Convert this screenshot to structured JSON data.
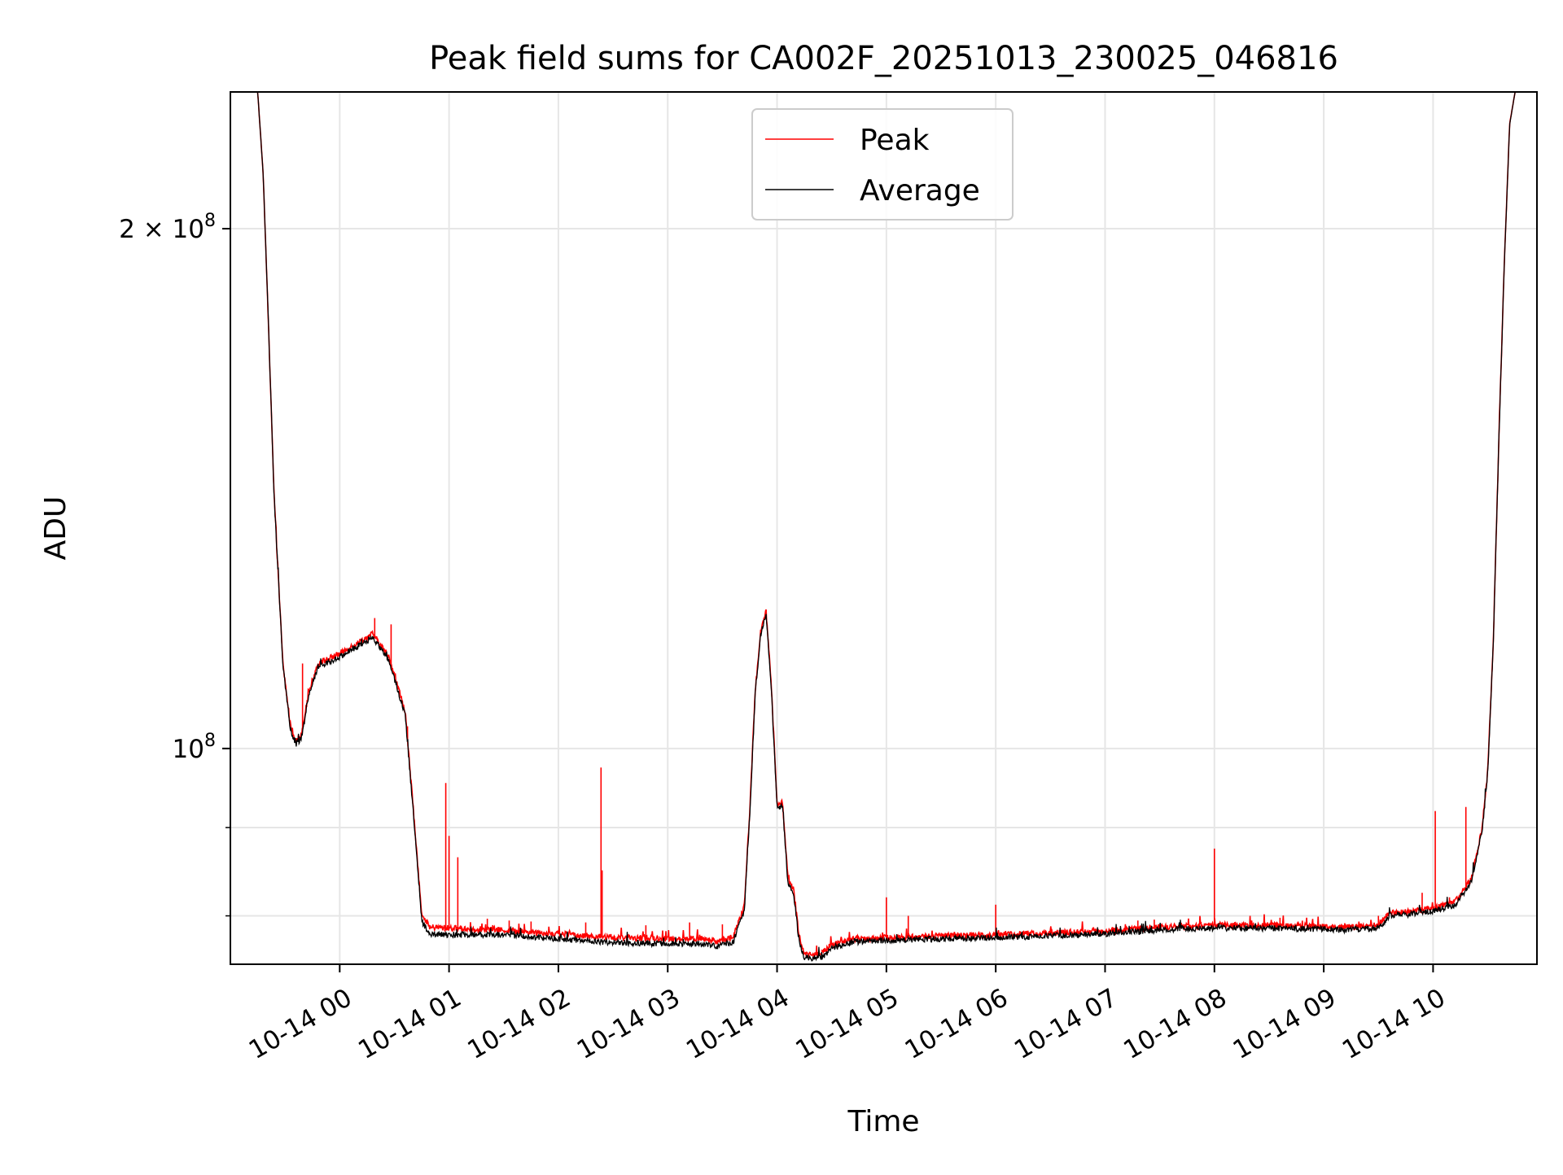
{
  "chart_data": {
    "type": "line",
    "title": "Peak field sums for CA002F_20251013_230025_046816",
    "xlabel": "Time",
    "ylabel": "ADU",
    "yscale": "log",
    "ylim": [
      75000000,
      240000000
    ],
    "xlim_hours": [
      23.0,
      34.95
    ],
    "grid": true,
    "legend_position": "upper center",
    "x_ticks": [
      {
        "hour": 24,
        "label": "10-14 00"
      },
      {
        "hour": 25,
        "label": "10-14 01"
      },
      {
        "hour": 26,
        "label": "10-14 02"
      },
      {
        "hour": 27,
        "label": "10-14 03"
      },
      {
        "hour": 28,
        "label": "10-14 04"
      },
      {
        "hour": 29,
        "label": "10-14 05"
      },
      {
        "hour": 30,
        "label": "10-14 06"
      },
      {
        "hour": 31,
        "label": "10-14 07"
      },
      {
        "hour": 32,
        "label": "10-14 08"
      },
      {
        "hour": 33,
        "label": "10-14 09"
      },
      {
        "hour": 34,
        "label": "10-14 10"
      }
    ],
    "y_major_ticks": [
      {
        "value": 100000000,
        "base": "10",
        "exp": "8",
        "prefix": ""
      },
      {
        "value": 200000000,
        "base": "10",
        "exp": "8",
        "prefix": "2 × "
      }
    ],
    "y_minor_ticks": [
      80000000,
      90000000
    ],
    "series": [
      {
        "name": "Peak",
        "color": "#ff0000",
        "keypoints": [
          [
            23.0,
            240000000
          ],
          [
            23.25,
            240000000
          ],
          [
            23.3,
            215000000
          ],
          [
            23.35,
            175000000
          ],
          [
            23.4,
            140000000
          ],
          [
            23.48,
            112000000
          ],
          [
            23.55,
            103000000
          ],
          [
            23.6,
            101000000
          ],
          [
            23.65,
            102000000
          ],
          [
            23.72,
            108000000
          ],
          [
            23.8,
            112000000
          ],
          [
            24.0,
            113500000
          ],
          [
            24.2,
            115500000
          ],
          [
            24.3,
            116500000
          ],
          [
            24.45,
            113000000
          ],
          [
            24.6,
            105000000
          ],
          [
            24.65,
            96000000
          ],
          [
            24.7,
            88000000
          ],
          [
            24.75,
            80000000
          ],
          [
            24.82,
            78800000
          ],
          [
            25.0,
            78700000
          ],
          [
            25.5,
            78500000
          ],
          [
            26.0,
            78100000
          ],
          [
            26.5,
            77700000
          ],
          [
            27.0,
            77600000
          ],
          [
            27.3,
            77600000
          ],
          [
            27.45,
            77300000
          ],
          [
            27.6,
            77800000
          ],
          [
            27.7,
            81000000
          ],
          [
            27.75,
            92000000
          ],
          [
            27.8,
            108000000
          ],
          [
            27.85,
            117000000
          ],
          [
            27.9,
            120000000
          ],
          [
            27.95,
            108000000
          ],
          [
            28.0,
            93000000
          ],
          [
            28.05,
            93000000
          ],
          [
            28.1,
            84000000
          ],
          [
            28.15,
            83000000
          ],
          [
            28.2,
            78000000
          ],
          [
            28.25,
            76000000
          ],
          [
            28.4,
            76000000
          ],
          [
            28.5,
            77000000
          ],
          [
            28.7,
            77600000
          ],
          [
            29.0,
            77700000
          ],
          [
            29.5,
            77900000
          ],
          [
            30.0,
            78000000
          ],
          [
            30.5,
            78200000
          ],
          [
            31.0,
            78400000
          ],
          [
            31.5,
            78800000
          ],
          [
            32.0,
            79000000
          ],
          [
            32.5,
            79000000
          ],
          [
            33.0,
            78900000
          ],
          [
            33.2,
            78800000
          ],
          [
            33.5,
            79000000
          ],
          [
            33.6,
            80300000
          ],
          [
            33.8,
            80500000
          ],
          [
            34.0,
            80800000
          ],
          [
            34.2,
            81500000
          ],
          [
            34.35,
            84000000
          ],
          [
            34.45,
            90000000
          ],
          [
            34.5,
            97000000
          ],
          [
            34.55,
            115000000
          ],
          [
            34.6,
            150000000
          ],
          [
            34.65,
            190000000
          ],
          [
            34.7,
            230000000
          ],
          [
            34.75,
            240000000
          ],
          [
            34.95,
            240000000
          ]
        ],
        "spikes": [
          [
            23.66,
            112000000
          ],
          [
            24.08,
            114000000
          ],
          [
            24.32,
            119000000
          ],
          [
            24.47,
            118000000
          ],
          [
            24.62,
            103000000
          ],
          [
            24.97,
            95500000
          ],
          [
            25.0,
            89000000
          ],
          [
            25.08,
            86500000
          ],
          [
            25.35,
            79700000
          ],
          [
            25.55,
            79500000
          ],
          [
            25.75,
            79400000
          ],
          [
            26.25,
            79300000
          ],
          [
            26.39,
            97500000
          ],
          [
            26.4,
            85000000
          ],
          [
            26.8,
            79000000
          ],
          [
            27.2,
            79300000
          ],
          [
            27.5,
            79100000
          ],
          [
            29.0,
            82000000
          ],
          [
            29.2,
            80000000
          ],
          [
            30.0,
            81200000
          ],
          [
            31.3,
            79500000
          ],
          [
            31.45,
            79600000
          ],
          [
            32.0,
            87500000
          ],
          [
            32.6,
            79800000
          ],
          [
            33.5,
            80000000
          ],
          [
            33.9,
            82500000
          ],
          [
            34.02,
            92000000
          ],
          [
            34.15,
            82000000
          ],
          [
            34.3,
            92500000
          ]
        ]
      },
      {
        "name": "Average",
        "color": "#000000",
        "keypoints": [
          [
            23.0,
            240000000
          ],
          [
            23.25,
            240000000
          ],
          [
            23.3,
            215000000
          ],
          [
            23.35,
            175000000
          ],
          [
            23.4,
            140000000
          ],
          [
            23.48,
            112000000
          ],
          [
            23.55,
            102500000
          ],
          [
            23.6,
            100500000
          ],
          [
            23.65,
            101500000
          ],
          [
            23.72,
            107500000
          ],
          [
            23.8,
            111500000
          ],
          [
            24.0,
            113000000
          ],
          [
            24.2,
            115000000
          ],
          [
            24.3,
            116000000
          ],
          [
            24.45,
            112500000
          ],
          [
            24.6,
            104500000
          ],
          [
            24.65,
            95500000
          ],
          [
            24.7,
            87500000
          ],
          [
            24.75,
            79500000
          ],
          [
            24.82,
            78000000
          ],
          [
            25.0,
            78000000
          ],
          [
            25.5,
            78000000
          ],
          [
            26.0,
            77600000
          ],
          [
            26.5,
            77200000
          ],
          [
            27.0,
            77100000
          ],
          [
            27.3,
            77100000
          ],
          [
            27.45,
            76800000
          ],
          [
            27.6,
            77300000
          ],
          [
            27.7,
            80500000
          ],
          [
            27.75,
            91500000
          ],
          [
            27.8,
            107500000
          ],
          [
            27.85,
            116500000
          ],
          [
            27.9,
            119500000
          ],
          [
            27.95,
            107500000
          ],
          [
            28.0,
            92500000
          ],
          [
            28.05,
            92500000
          ],
          [
            28.1,
            83500000
          ],
          [
            28.15,
            82500000
          ],
          [
            28.2,
            77500000
          ],
          [
            28.25,
            75600000
          ],
          [
            28.4,
            75600000
          ],
          [
            28.5,
            76600000
          ],
          [
            28.7,
            77300000
          ],
          [
            29.0,
            77400000
          ],
          [
            29.5,
            77600000
          ],
          [
            30.0,
            77700000
          ],
          [
            30.5,
            77900000
          ],
          [
            31.0,
            78100000
          ],
          [
            31.5,
            78500000
          ],
          [
            32.0,
            78700000
          ],
          [
            32.5,
            78700000
          ],
          [
            33.0,
            78600000
          ],
          [
            33.2,
            78500000
          ],
          [
            33.5,
            78700000
          ],
          [
            33.6,
            80000000
          ],
          [
            33.8,
            80200000
          ],
          [
            34.0,
            80500000
          ],
          [
            34.2,
            81200000
          ],
          [
            34.35,
            83700000
          ],
          [
            34.45,
            89700000
          ],
          [
            34.5,
            96700000
          ],
          [
            34.55,
            114700000
          ],
          [
            34.6,
            149700000
          ],
          [
            34.65,
            189700000
          ],
          [
            34.7,
            229700000
          ],
          [
            34.75,
            240000000
          ],
          [
            34.95,
            240000000
          ]
        ],
        "spikes": []
      }
    ]
  }
}
